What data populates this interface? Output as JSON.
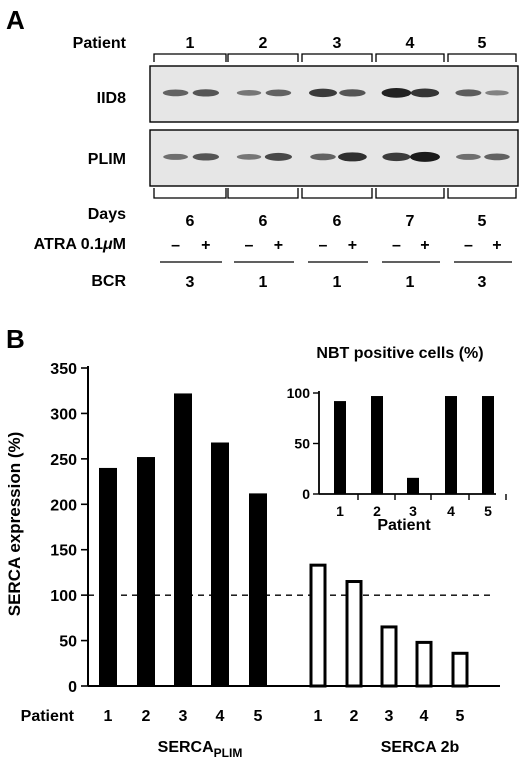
{
  "panel_a": {
    "letter": "A",
    "patient_label": "Patient",
    "patients": [
      "1",
      "2",
      "3",
      "4",
      "5"
    ],
    "blot_labels": [
      "IID8",
      "PLIM"
    ],
    "days_label": "Days",
    "days": [
      "6",
      "6",
      "6",
      "7",
      "5"
    ],
    "atra_label": "ATRA 0.1",
    "atra_unit": "μ",
    "atra_unit_suffix": "M",
    "atra_signs": [
      "–",
      "+"
    ],
    "bcr_label": "BCR",
    "bcr": [
      "3",
      "1",
      "1",
      "1",
      "3"
    ],
    "band_intensity": {
      "IID8": [
        [
          0.45,
          0.55
        ],
        [
          0.3,
          0.45
        ],
        [
          0.75,
          0.55
        ],
        [
          0.95,
          0.8
        ],
        [
          0.5,
          0.2
        ]
      ],
      "PLIM": [
        [
          0.35,
          0.55
        ],
        [
          0.3,
          0.65
        ],
        [
          0.45,
          0.85
        ],
        [
          0.75,
          1.0
        ],
        [
          0.35,
          0.45
        ]
      ]
    }
  },
  "panel_b": {
    "letter": "B",
    "chart_data": [
      {
        "type": "bar",
        "ylabel": "SERCA expression (%)",
        "ylim": [
          0,
          350
        ],
        "yticks": [
          0,
          50,
          100,
          150,
          200,
          250,
          300,
          350
        ],
        "x_row_label": "Patient",
        "reference_line": 100,
        "groups": [
          {
            "name": "SERCA",
            "name_sub": "PLIM",
            "style": "filled",
            "categories": [
              "1",
              "2",
              "3",
              "4",
              "5"
            ],
            "values": [
              240,
              252,
              322,
              268,
              212
            ]
          },
          {
            "name": "SERCA 2b",
            "name_sub": "",
            "style": "hollow",
            "categories": [
              "1",
              "2",
              "3",
              "4",
              "5"
            ],
            "values": [
              133,
              115,
              65,
              48,
              36
            ]
          }
        ]
      },
      {
        "type": "bar",
        "title": "NBT positive cells (%)",
        "xlabel": "Patient",
        "ylim": [
          0,
          100
        ],
        "yticks": [
          0,
          50,
          100
        ],
        "categories": [
          "1",
          "2",
          "3",
          "4",
          "5"
        ],
        "values": [
          92,
          97,
          16,
          97,
          97
        ]
      }
    ]
  }
}
